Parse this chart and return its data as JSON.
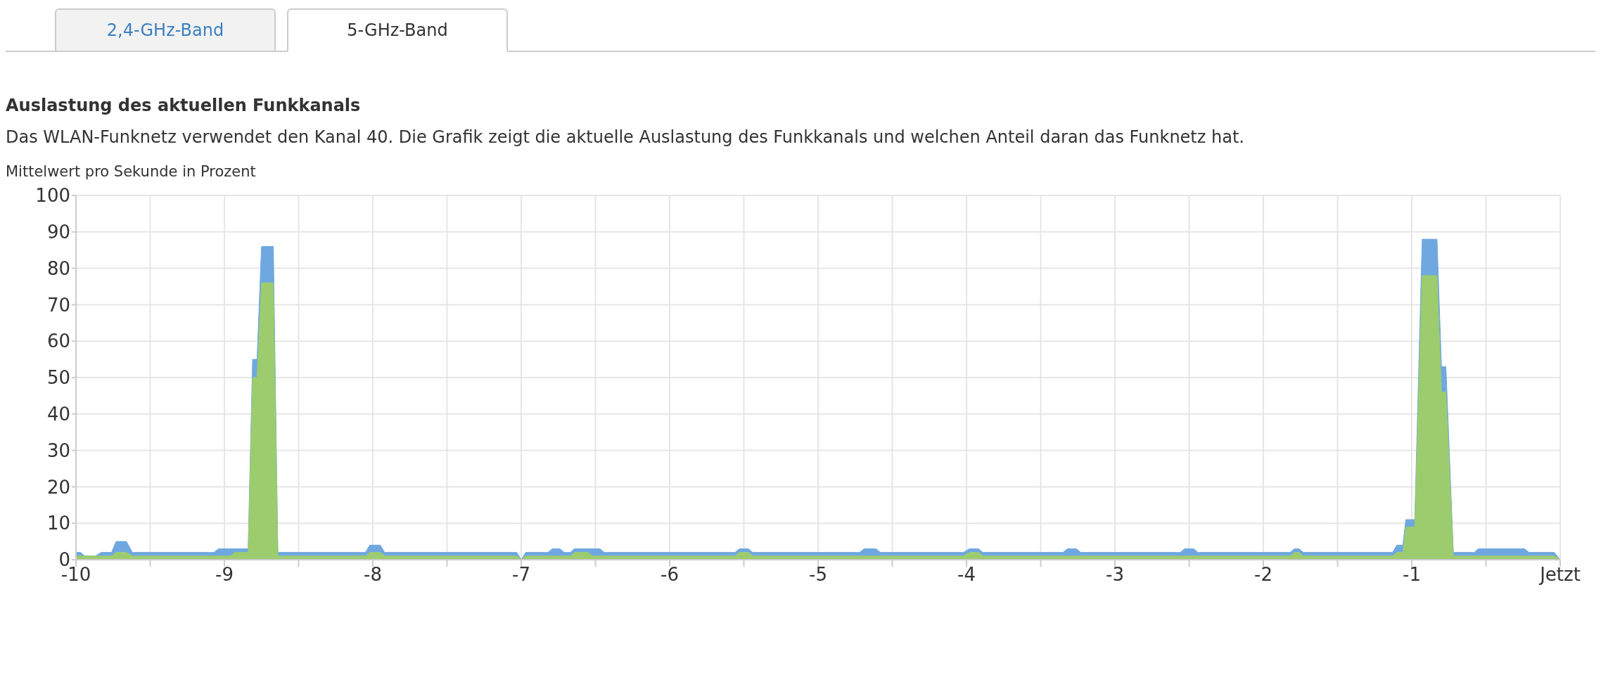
{
  "chart_data": {
    "type": "area",
    "title": "Auslastung des aktuellen Funkkanals",
    "subtitle": "Das WLAN-Funknetz verwendet den Kanal 40. Die Grafik zeigt die aktuelle Auslastung des Funkkanals und welchen Anteil daran das Funknetz hat.",
    "ylabel": "Mittelwert pro Sekunde in Prozent",
    "annotations": [
      "2,4-GHz-Band",
      "5-GHz-Band"
    ],
    "x": [
      -10,
      -9.97,
      -9.94,
      -9.87,
      -9.83,
      -9.76,
      -9.73,
      -9.66,
      -9.62,
      -9.07,
      -9.04,
      -8.96,
      -8.93,
      -8.84,
      -8.81,
      -8.78,
      -8.75,
      -8.67,
      -8.64,
      -8.05,
      -8.02,
      -7.95,
      -7.92,
      -7.03,
      -7.0,
      -6.97,
      -6.82,
      -6.79,
      -6.74,
      -6.71,
      -6.67,
      -6.64,
      -6.55,
      -6.52,
      -6.47,
      -6.44,
      -5.56,
      -5.53,
      -5.47,
      -5.44,
      -4.72,
      -4.69,
      -4.61,
      -4.58,
      -4.02,
      -3.98,
      -3.92,
      -3.89,
      -3.35,
      -3.32,
      -3.26,
      -3.23,
      -2.56,
      -2.53,
      -2.47,
      -2.44,
      -1.82,
      -1.79,
      -1.76,
      -1.73,
      -1.13,
      -1.1,
      -1.06,
      -1.04,
      -0.98,
      -0.93,
      -0.83,
      -0.8,
      -0.77,
      -0.72,
      -0.58,
      -0.55,
      -0.24,
      -0.21,
      -0.04,
      0
    ],
    "series": [
      {
        "color": "#6fa8e0",
        "values": [
          2,
          2,
          1,
          1,
          2,
          2,
          5,
          5,
          2,
          2,
          3,
          3,
          3,
          3,
          55,
          55,
          86,
          86,
          2,
          2,
          4,
          4,
          2,
          2,
          0,
          2,
          2,
          3,
          3,
          2,
          2,
          3,
          3,
          3,
          3,
          2,
          2,
          3,
          3,
          2,
          2,
          3,
          3,
          2,
          2,
          3,
          3,
          2,
          2,
          3,
          3,
          2,
          2,
          3,
          3,
          2,
          2,
          3,
          3,
          2,
          2,
          4,
          4,
          11,
          11,
          88,
          88,
          53,
          53,
          2,
          2,
          3,
          3,
          2,
          2,
          0
        ]
      },
      {
        "color": "#9ccc6e",
        "values": [
          1,
          1,
          1,
          1,
          1,
          1,
          2,
          2,
          1,
          1,
          1,
          1,
          2,
          2,
          50,
          50,
          76,
          76,
          1,
          1,
          2,
          2,
          1,
          1,
          0,
          1,
          1,
          1,
          1,
          1,
          1,
          2,
          2,
          1,
          1,
          1,
          1,
          2,
          2,
          1,
          1,
          1,
          1,
          1,
          1,
          2,
          2,
          1,
          1,
          1,
          1,
          1,
          1,
          1,
          1,
          1,
          1,
          2,
          2,
          1,
          1,
          2,
          2,
          9,
          9,
          78,
          78,
          46,
          46,
          1,
          1,
          1,
          1,
          1,
          1,
          0
        ]
      }
    ],
    "xlim": [
      -10,
      0
    ],
    "xticks": [
      -10,
      {
        "value": -9.5,
        "label": null
      },
      -9,
      {
        "value": -8.5,
        "label": null
      },
      -8,
      {
        "value": -7.5,
        "label": null
      },
      -7,
      {
        "value": -6.5,
        "label": null
      },
      -6,
      {
        "value": -5.5,
        "label": null
      },
      -5,
      {
        "value": -4.5,
        "label": null
      },
      -4,
      {
        "value": -3.5,
        "label": null
      },
      -3,
      {
        "value": -2.5,
        "label": null
      },
      -2,
      {
        "value": -1.5,
        "label": null
      },
      -1,
      {
        "value": -0.5,
        "label": null
      },
      {
        "value": 0,
        "label": "Jetzt"
      }
    ],
    "ylim": [
      0,
      100
    ],
    "yticks": [
      0,
      10,
      20,
      30,
      40,
      50,
      60,
      70,
      80,
      90,
      100
    ],
    "grid": true
  }
}
